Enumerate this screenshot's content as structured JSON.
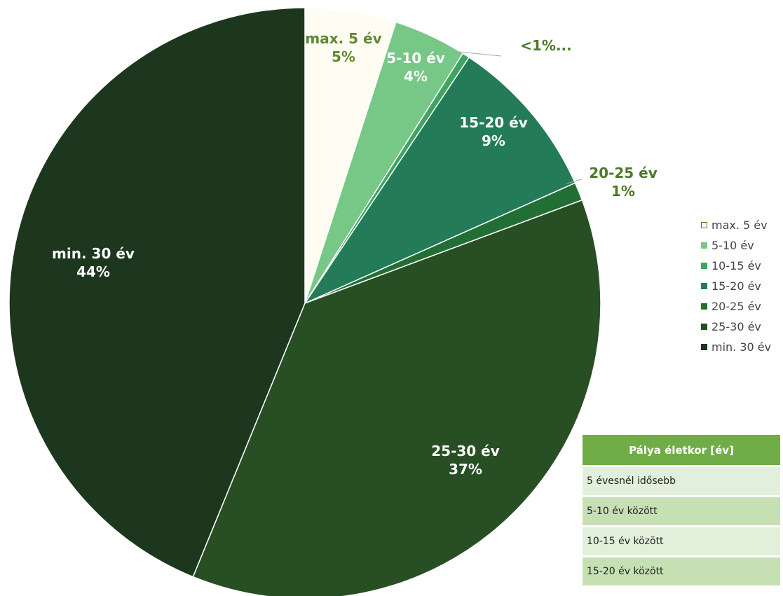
{
  "chart_data": {
    "type": "pie",
    "title": "",
    "start_angle": "12 o'clock",
    "direction": "clockwise",
    "slices": [
      {
        "category": "max. 5 év",
        "value": 5,
        "display": "5%",
        "color": "#fffdf2",
        "label_line1": "max. 5 év",
        "label_line2": "5%"
      },
      {
        "category": "5-10 év",
        "value": 4,
        "display": "4%",
        "color": "#77c786",
        "label_line1": "5-10 év",
        "label_line2": "4%"
      },
      {
        "category": "10-15 év",
        "value": 0.4,
        "display": "<1%...",
        "color": "#3ea460",
        "label_line1": "<1%...",
        "label_line2": ""
      },
      {
        "category": "15-20 év",
        "value": 9,
        "display": "9%",
        "color": "#237c57",
        "label_line1": "15-20 év",
        "label_line2": "9%"
      },
      {
        "category": "20-25 év",
        "value": 1,
        "display": "1%",
        "color": "#226f36",
        "label_line1": "20-25 év",
        "label_line2": "1%"
      },
      {
        "category": "25-30 év",
        "value": 37,
        "display": "37%",
        "color": "#284e23",
        "label_line1": "25-30 év",
        "label_line2": "37%"
      },
      {
        "category": "min. 30 év",
        "value": 44,
        "display": "44%",
        "color": "#1d371e",
        "label_line1": "min. 30 év",
        "label_line2": "44%"
      }
    ],
    "legend": {
      "position": "right",
      "items": [
        "max. 5 év",
        "5-10 év",
        "10-15 év",
        "15-20 év",
        "20-25 év",
        "25-30 év",
        "min. 30 év"
      ]
    }
  },
  "table": {
    "header": "Pálya életkor [év]",
    "rows": [
      "5 évesnél idősebb",
      "5-10 év között",
      "10-15 év között",
      "15-20 év között"
    ]
  }
}
